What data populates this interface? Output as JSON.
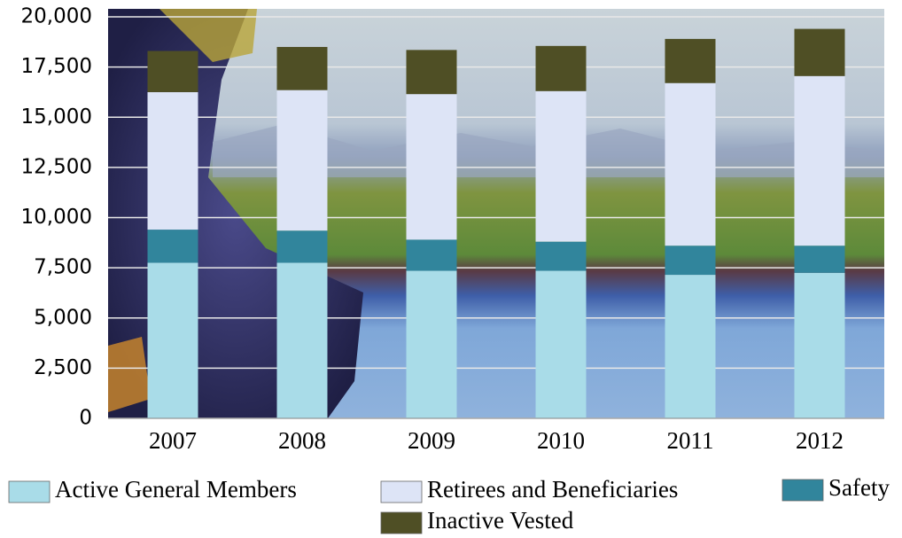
{
  "chart_data": {
    "type": "stacked_bar",
    "categories": [
      "2007",
      "2008",
      "2009",
      "2010",
      "2011",
      "2012"
    ],
    "series": [
      {
        "name": "Active General Members",
        "color": "#a9dce8",
        "values": [
          7750,
          7750,
          7350,
          7350,
          7150,
          7250
        ]
      },
      {
        "name": "Safety",
        "color": "#31859c",
        "values": [
          1650,
          1600,
          1550,
          1450,
          1450,
          1350
        ]
      },
      {
        "name": "Retirees and Beneficiaries",
        "color": "#dde4f6",
        "values": [
          6850,
          7000,
          7250,
          7500,
          8100,
          8450
        ]
      },
      {
        "name": "Inactive Vested",
        "color": "#4f4f25",
        "values": [
          2050,
          2150,
          2200,
          2250,
          2200,
          2350
        ]
      }
    ],
    "ylim": [
      0,
      20000
    ],
    "yticks": [
      0,
      {
        "value": 2500,
        "label": "2,500"
      },
      {
        "value": 5000,
        "label": "5,000"
      },
      {
        "value": 7500,
        "label": "7,500"
      },
      {
        "value": 10000,
        "label": "10,000"
      },
      {
        "value": 12500,
        "label": "12,500"
      },
      {
        "value": 15000,
        "label": "15,000"
      },
      {
        "value": 17500,
        "label": "17,500"
      },
      {
        "value": 20000,
        "label": "20,000"
      }
    ],
    "grid": true
  }
}
